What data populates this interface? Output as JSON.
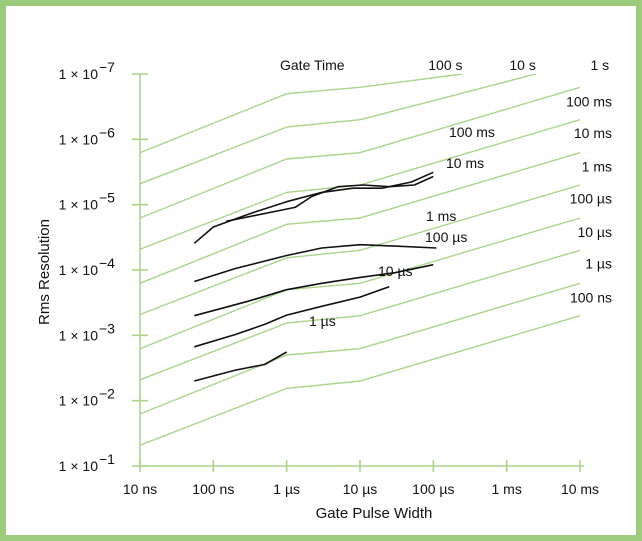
{
  "chart_data": {
    "type": "line",
    "xlabel": "Gate Pulse Width",
    "ylabel": "Rms Resolution",
    "legend_title": "Gate Time",
    "x_scale": "log",
    "y_scale": "log",
    "x_ticks": [
      {
        "value": 1e-08,
        "label": "10 ns"
      },
      {
        "value": 1e-07,
        "label": "100 ns"
      },
      {
        "value": 1e-06,
        "label": "1 µs"
      },
      {
        "value": 1e-05,
        "label": "10 µs"
      },
      {
        "value": 0.0001,
        "label": "100 µs"
      },
      {
        "value": 0.001,
        "label": "1 ms"
      },
      {
        "value": 0.01,
        "label": "10 ms"
      }
    ],
    "y_ticks": [
      {
        "value": 1e-07,
        "mant": "1 × 10",
        "exp": "−7"
      },
      {
        "value": 1e-06,
        "mant": "1 × 10",
        "exp": "−6"
      },
      {
        "value": 1e-05,
        "mant": "1 × 10",
        "exp": "−5"
      },
      {
        "value": 0.0001,
        "mant": "1 × 10",
        "exp": "−4"
      },
      {
        "value": 0.001,
        "mant": "1 × 10",
        "exp": "−3"
      },
      {
        "value": 0.01,
        "mant": "1 × 10",
        "exp": "−2"
      },
      {
        "value": 0.1,
        "mant": "1 × 10",
        "exp": "−1"
      }
    ],
    "xlim": [
      1e-08,
      0.01
    ],
    "ylim": [
      1e-07,
      0.1
    ],
    "theoretical_series": [
      {
        "name": "100 s",
        "x": [
          1e-08,
          1e-06,
          1e-05,
          0.00025
        ],
        "y": [
          1.6e-06,
          2e-07,
          1.6e-07,
          1e-07
        ]
      },
      {
        "name": "10 s",
        "x": [
          1e-08,
          1e-06,
          1e-05,
          0.0025
        ],
        "y": [
          4.8e-06,
          6.5e-07,
          5e-07,
          1e-07
        ]
      },
      {
        "name": "1 s",
        "x": [
          1e-08,
          1e-06,
          1e-05,
          0.01
        ],
        "y": [
          1.6e-05,
          2e-06,
          1.6e-06,
          1.6e-07
        ]
      },
      {
        "name": "100 ms",
        "x": [
          1e-08,
          1e-06,
          1e-05,
          0.01
        ],
        "y": [
          4.8e-05,
          6.5e-06,
          5e-06,
          5e-07
        ]
      },
      {
        "name": "10 ms",
        "x": [
          1e-08,
          1e-06,
          1e-05,
          0.01
        ],
        "y": [
          0.00016,
          2e-05,
          1.6e-05,
          1.6e-06
        ]
      },
      {
        "name": "1 ms",
        "x": [
          1e-08,
          1e-06,
          1e-05,
          0.01
        ],
        "y": [
          0.00048,
          6.5e-05,
          5e-05,
          5e-06
        ]
      },
      {
        "name": "100 µs",
        "x": [
          1e-08,
          1e-06,
          1e-05,
          0.01
        ],
        "y": [
          0.0016,
          0.0002,
          0.00016,
          1.6e-05
        ]
      },
      {
        "name": "10 µs",
        "x": [
          1e-08,
          1e-06,
          1e-05,
          0.01
        ],
        "y": [
          0.0048,
          0.00065,
          0.0005,
          5e-05
        ]
      },
      {
        "name": "1 µs",
        "x": [
          1e-08,
          1e-06,
          1e-05,
          0.01
        ],
        "y": [
          0.016,
          0.002,
          0.0016,
          0.00016
        ]
      },
      {
        "name": "100 ns",
        "x": [
          1e-08,
          1e-06,
          1e-05,
          0.01
        ],
        "y": [
          0.048,
          0.0065,
          0.005,
          0.0005
        ]
      }
    ],
    "measured_series": [
      {
        "name": "100 ms",
        "x": [
          1.5e-07,
          1.3e-06,
          2.2e-06,
          5e-06,
          1.1e-05,
          2.5e-05,
          5.5e-05,
          0.0001
        ],
        "y": [
          1.8e-05,
          1.1e-05,
          7.5e-06,
          5.3e-06,
          5e-06,
          5.3e-06,
          5e-06,
          3.7e-06
        ]
      },
      {
        "name": "10 ms",
        "x": [
          5.5e-08,
          1e-07,
          3e-07,
          1e-06,
          3e-06,
          8e-06,
          2e-05,
          5e-05,
          0.0001
        ],
        "y": [
          3.9e-05,
          2.2e-05,
          1.4e-05,
          9e-06,
          6.5e-06,
          5.6e-06,
          5.6e-06,
          4.5e-06,
          3.2e-06
        ]
      },
      {
        "name": "1 ms",
        "x": [
          5.5e-08,
          2e-07,
          1e-06,
          3e-06,
          1e-05,
          3e-05,
          0.00011
        ],
        "y": [
          0.00015,
          9.5e-05,
          6e-05,
          4.6e-05,
          4.1e-05,
          4.3e-05,
          4.6e-05
        ]
      },
      {
        "name": "100 µs",
        "x": [
          5.5e-08,
          3e-07,
          1e-06,
          3e-06,
          1e-05,
          3e-05,
          0.0001
        ],
        "y": [
          0.0005,
          0.0003,
          0.0002,
          0.00016,
          0.00013,
          0.00011,
          8.3e-05
        ]
      },
      {
        "name": "10 µs",
        "x": [
          5.5e-08,
          2e-07,
          5e-07,
          1e-06,
          3e-06,
          1e-05,
          2.5e-05
        ],
        "y": [
          0.0015,
          0.00097,
          0.00068,
          0.00049,
          0.00036,
          0.00026,
          0.00018
        ]
      },
      {
        "name": "1 µs",
        "x": [
          5.5e-08,
          2e-07,
          5e-07,
          1e-06
        ],
        "y": [
          0.005,
          0.0034,
          0.0028,
          0.0018
        ]
      }
    ],
    "gate_time_labels": [
      {
        "text": "100 s",
        "x": 0.00025,
        "y": 1e-07,
        "anchor": "end"
      },
      {
        "text": "10 s",
        "x": 0.0025,
        "y": 1e-07,
        "anchor": "end"
      },
      {
        "text": "1 s",
        "x": 0.025,
        "y": 1e-07,
        "anchor": "end"
      },
      {
        "text": "100 ms",
        "x": 0.032,
        "y": 3.6e-07,
        "anchor": "end"
      },
      {
        "text": "10 ms",
        "x": 0.032,
        "y": 1.1e-06,
        "anchor": "end"
      },
      {
        "text": "1 ms",
        "x": 0.03,
        "y": 3.6e-06,
        "anchor": "end"
      },
      {
        "text": "100 µs",
        "x": 0.032,
        "y": 1.1e-05,
        "anchor": "end"
      },
      {
        "text": "10 µs",
        "x": 0.032,
        "y": 3.6e-05,
        "anchor": "end"
      },
      {
        "text": "1 µs",
        "x": 0.032,
        "y": 0.00011,
        "anchor": "end"
      },
      {
        "text": "100 ns",
        "x": 0.032,
        "y": 0.00036,
        "anchor": "end"
      }
    ],
    "measured_labels": [
      {
        "text": "100 ms",
        "x": 0.00012,
        "y": 3.3e-06,
        "anchor": "start"
      },
      {
        "text": "10 ms",
        "x": 0.00012,
        "y": 3.5e-06,
        "anchor": "start",
        "skip": true
      },
      {
        "text": "1 ms",
        "x": 3.4e-05,
        "y": 3.6e-05,
        "anchor": "start"
      },
      {
        "text": "100 µs",
        "x": 2.2e-05,
        "y": 7.3e-05,
        "anchor": "start"
      },
      {
        "text": "10 µs",
        "x": 2.6e-05,
        "y": 0.000155,
        "anchor": "start"
      },
      {
        "text": "1 µs",
        "x": 1.4e-06,
        "y": 0.00155,
        "anchor": "start"
      }
    ],
    "colors": {
      "theoretical": "#a9d58b",
      "measured": "#111111",
      "axis": "#a9d58b",
      "frame": "#9ccb7c"
    }
  }
}
